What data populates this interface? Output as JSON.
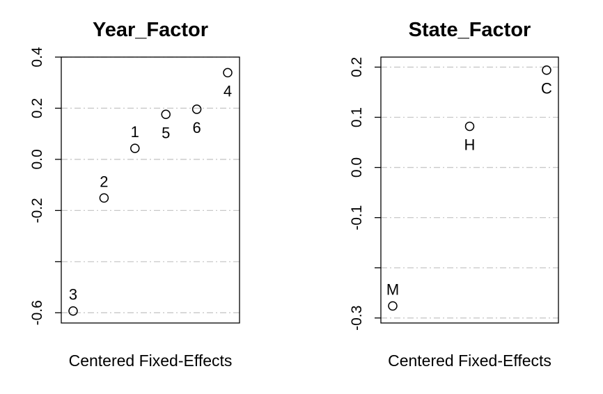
{
  "chart_data": [
    {
      "type": "scatter",
      "title": "Year_Factor",
      "xlabel": "Centered Fixed-Effects",
      "ylabel": "",
      "grid": true,
      "ylim": [
        -0.64,
        0.4
      ],
      "yticks": [
        0.4,
        0.2,
        0.0,
        -0.2,
        -0.4,
        -0.6
      ],
      "ytick_labels": [
        "0.4",
        "0.2",
        "0.0",
        "-0.2",
        "",
        "-0.6"
      ],
      "points": [
        {
          "label": "3",
          "x": 1,
          "y": -0.593,
          "label_pos": "above"
        },
        {
          "label": "2",
          "x": 2,
          "y": -0.151,
          "label_pos": "above"
        },
        {
          "label": "1",
          "x": 3,
          "y": 0.043,
          "label_pos": "above"
        },
        {
          "label": "5",
          "x": 4,
          "y": 0.176,
          "label_pos": "below"
        },
        {
          "label": "6",
          "x": 5,
          "y": 0.196,
          "label_pos": "below"
        },
        {
          "label": "4",
          "x": 6,
          "y": 0.339,
          "label_pos": "below"
        }
      ]
    },
    {
      "type": "scatter",
      "title": "State_Factor",
      "xlabel": "Centered Fixed-Effects",
      "ylabel": "",
      "grid": true,
      "ylim": [
        -0.31,
        0.22
      ],
      "yticks": [
        0.2,
        0.1,
        0.0,
        -0.1,
        -0.2,
        -0.3
      ],
      "ytick_labels": [
        "0.2",
        "0.1",
        "0.0",
        "-0.1",
        "",
        "-0.3"
      ],
      "points": [
        {
          "label": "M",
          "x": 1,
          "y": -0.276,
          "label_pos": "above"
        },
        {
          "label": "H",
          "x": 2,
          "y": 0.082,
          "label_pos": "below"
        },
        {
          "label": "C",
          "x": 3,
          "y": 0.194,
          "label_pos": "below"
        }
      ]
    }
  ]
}
